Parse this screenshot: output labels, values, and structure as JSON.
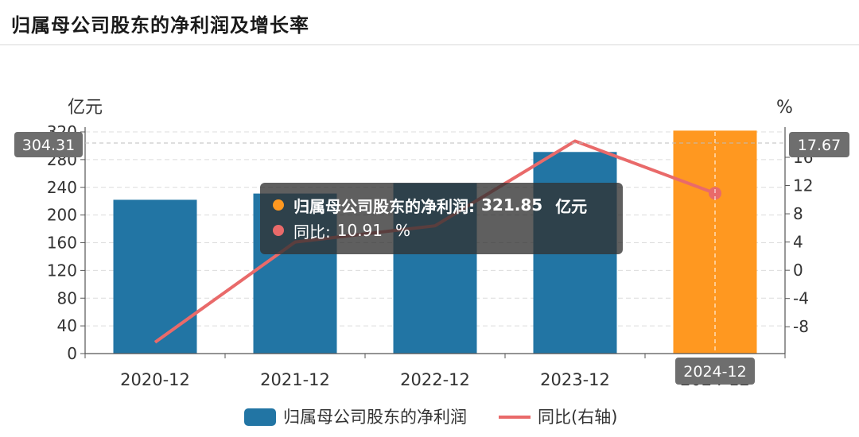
{
  "header": {
    "title": "归属母公司股东的净利润及增长率"
  },
  "colors": {
    "bar": "#2275a4",
    "bar_highlight": "#ff9820",
    "line": "#e96a6a",
    "axis_pointer_label_bg": "#6e6e6e"
  },
  "chart_data": {
    "type": "bar",
    "categories": [
      "2020-12",
      "2021-12",
      "2022-12",
      "2023-12",
      "2024-12"
    ],
    "series": [
      {
        "name": "归属母公司股东的净利润",
        "type": "bar",
        "axis": "left",
        "values": [
          222,
          231,
          246,
          291,
          321.85
        ]
      },
      {
        "name": "同比(右轴)",
        "type": "line",
        "axis": "right",
        "values": [
          -10.2,
          4.0,
          6.3,
          18.3,
          10.91
        ]
      }
    ],
    "left_axis": {
      "unit": "亿元",
      "min": 0,
      "max": 320,
      "interval": 40,
      "ticks": [
        "0",
        "40",
        "80",
        "120",
        "160",
        "200",
        "240",
        "280",
        "320"
      ]
    },
    "right_axis": {
      "unit": "%",
      "min": -11.8,
      "max": 19.6,
      "ticks": [
        "-8",
        "-4",
        "0",
        "4",
        "8",
        "12",
        "16"
      ]
    },
    "highlight_index": 4,
    "grid": true,
    "legend_position": "bottom-center",
    "axis_pointer": {
      "left_label": "304.31",
      "right_label": "17.67",
      "category_label": "2024-12"
    }
  },
  "tooltip": {
    "row1_name": "归属母公司股东的净利润:",
    "row1_value": "321.85",
    "row1_unit": "亿元",
    "row2_name": "同比:",
    "row2_value": "10.91",
    "row2_unit": "%"
  }
}
